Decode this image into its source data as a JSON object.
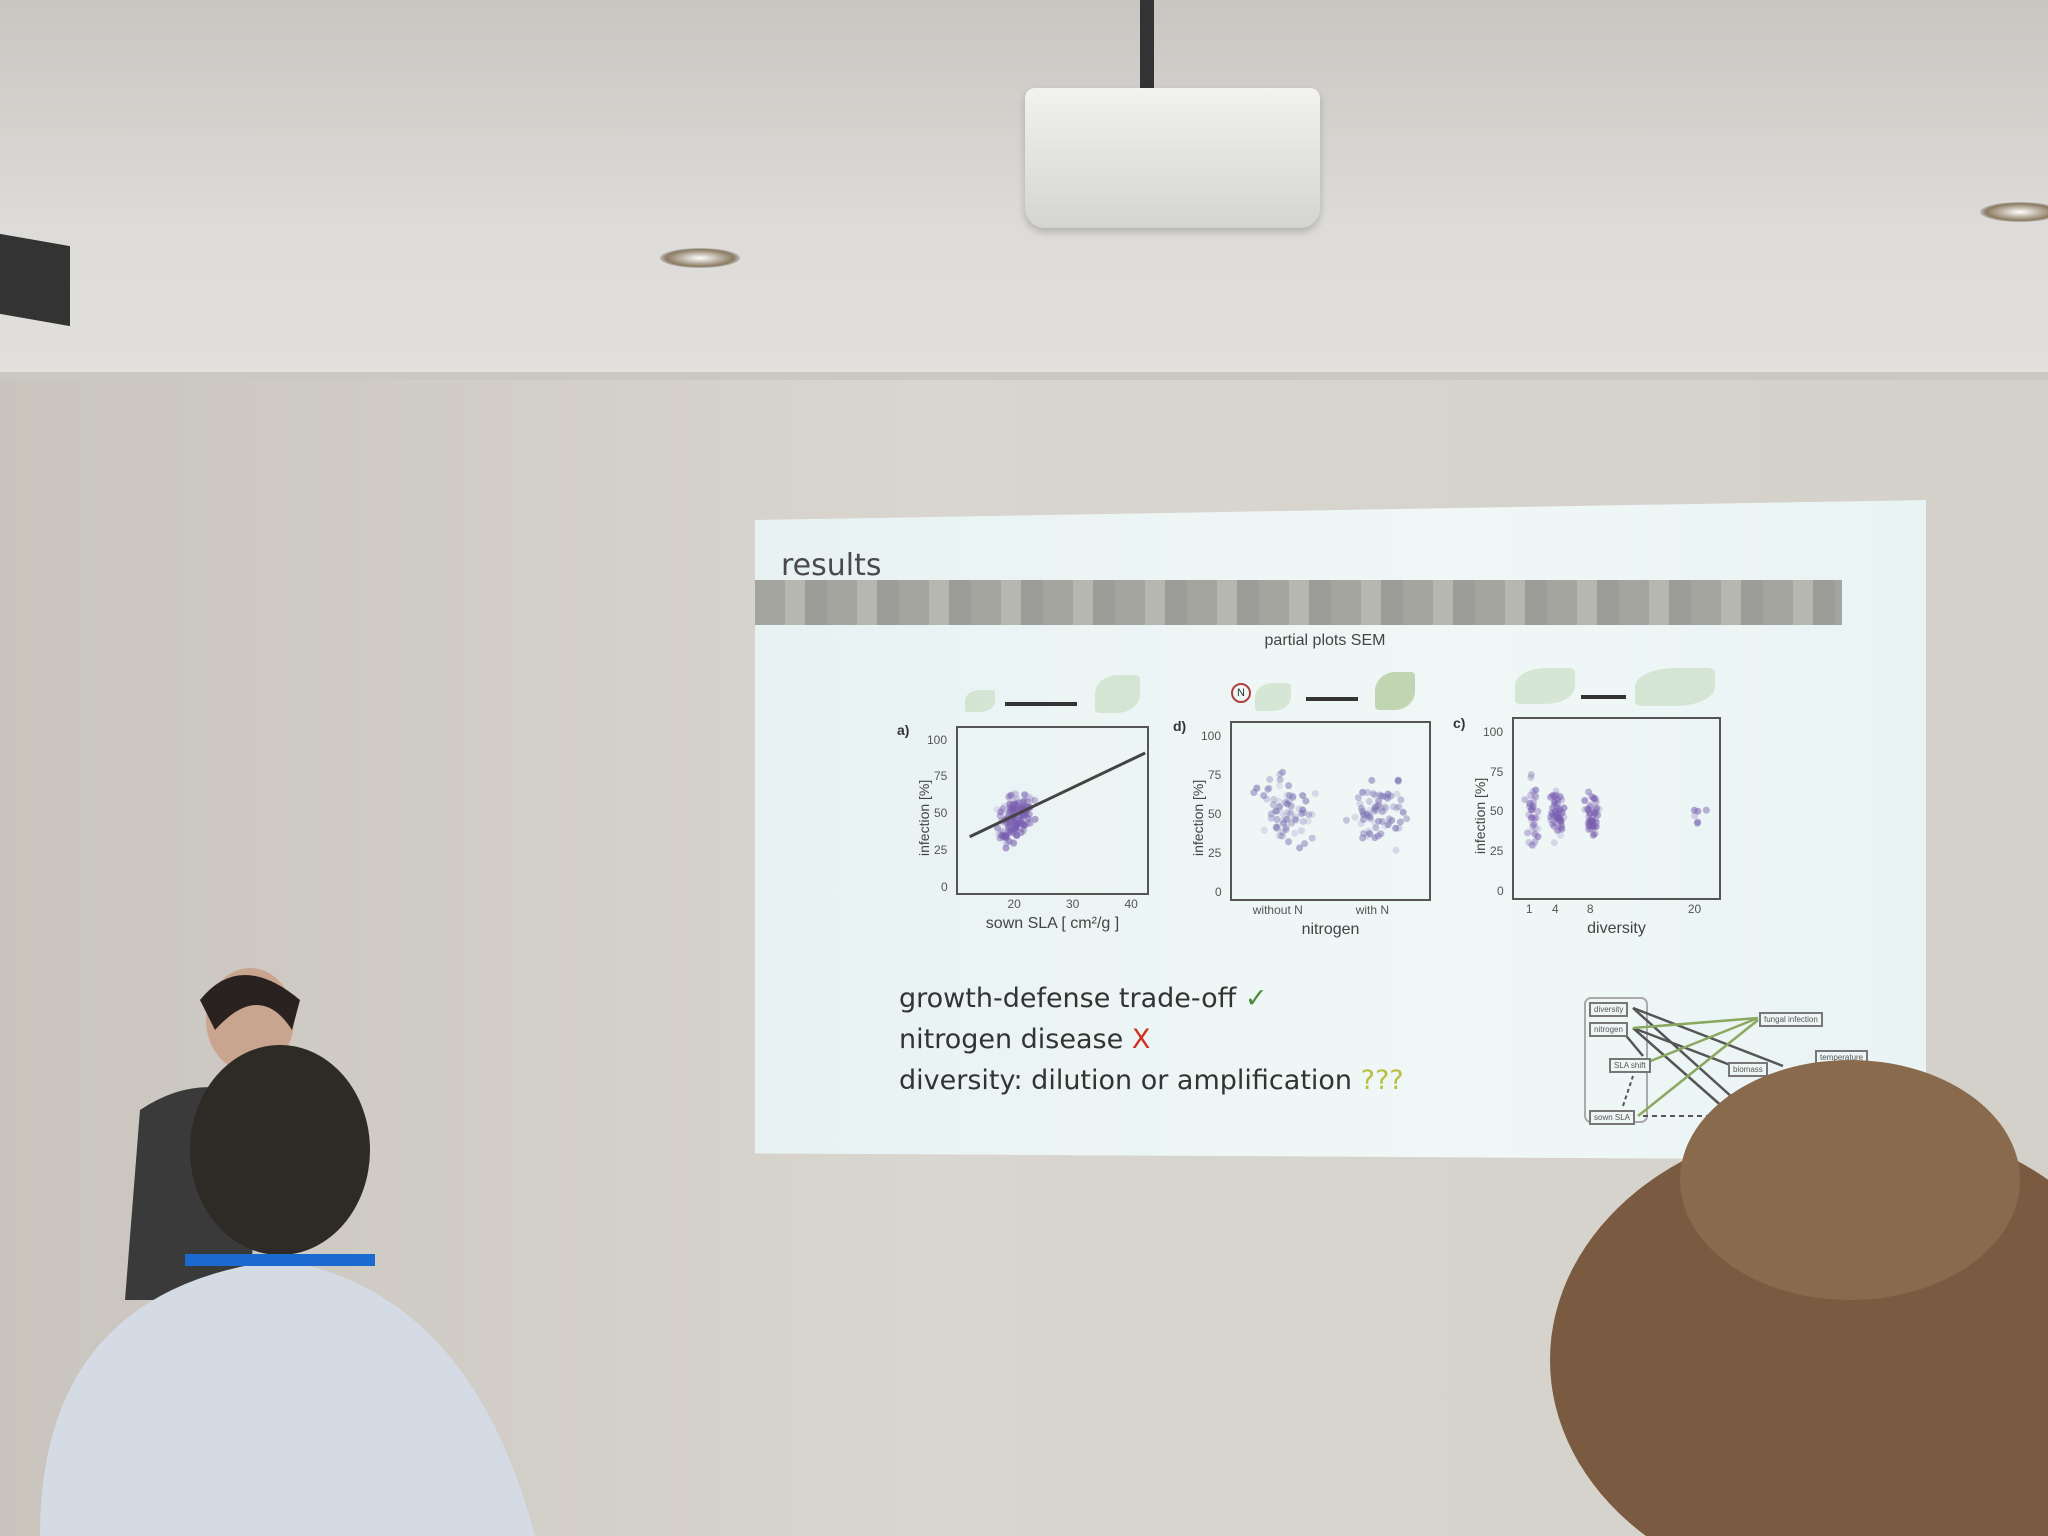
{
  "slide": {
    "title": "results",
    "subtitle": "partial plots SEM",
    "bullets": [
      {
        "text": "growth-defense trade-off",
        "mark": "✓",
        "mark_color": "#4a8a3a"
      },
      {
        "text": "nitrogen disease",
        "mark": "X",
        "mark_color": "#d03020"
      },
      {
        "text": "diversity: dilution or amplification",
        "mark": "???",
        "mark_color": "#b8c040"
      }
    ],
    "sem_diagram": {
      "nodes": [
        "diversity",
        "nitrogen",
        "SLA shift",
        "sown SLA",
        "fungal infection",
        "biomass",
        "temperature"
      ]
    }
  },
  "chart_data": [
    {
      "type": "scatter",
      "panel": "a)",
      "xlabel": "sown SLA [ cm²/g ]",
      "ylabel": "infection [%]",
      "xticks": [
        "20",
        "30",
        "40"
      ],
      "yticks": [
        "0",
        "25",
        "50",
        "75",
        "100"
      ],
      "xlim": [
        10,
        43
      ],
      "ylim": [
        -5,
        110
      ],
      "fit_line": {
        "x": [
          12,
          42
        ],
        "y": [
          36,
          93
        ]
      },
      "point_color": "#7a5fb0"
    },
    {
      "type": "scatter",
      "panel": "d)",
      "xlabel": "nitrogen",
      "ylabel": "infection [%]",
      "categories": [
        "without N",
        "with N"
      ],
      "yticks": [
        "0",
        "25",
        "50",
        "75",
        "100"
      ],
      "ylim": [
        -5,
        110
      ],
      "point_color": "#7a6fb0"
    },
    {
      "type": "scatter",
      "panel": "c)",
      "xlabel": "diversity",
      "ylabel": "infection [%]",
      "xticks": [
        "1",
        "4",
        "8",
        "20"
      ],
      "yticks": [
        "0",
        "25",
        "50",
        "75",
        "100"
      ],
      "xlim": [
        -1,
        23
      ],
      "ylim": [
        -5,
        110
      ],
      "point_color": "#7a5fb0"
    }
  ]
}
